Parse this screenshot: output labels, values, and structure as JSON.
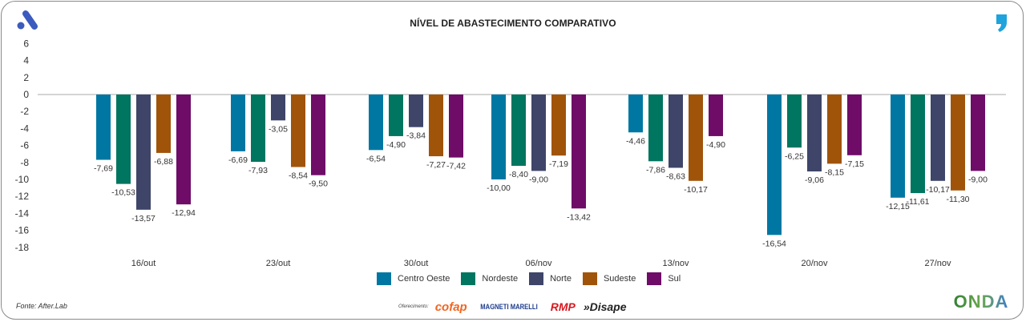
{
  "chart_data": {
    "type": "bar",
    "title": "NÍVEL DE ABASTECIMENTO COMPARATIVO",
    "xlabel": "",
    "ylabel": "",
    "ylim": [
      -18,
      6
    ],
    "yticks": [
      6,
      4,
      2,
      0,
      -2,
      -4,
      -6,
      -8,
      -10,
      -12,
      -14,
      -16,
      -18
    ],
    "ytick_labels": [
      "6",
      "4",
      "2",
      "0",
      "-2",
      "-4",
      "-6",
      "-8",
      "-10",
      "-12",
      "-14",
      "-16",
      "-18"
    ],
    "grid": false,
    "legend_position": "bottom",
    "categories": [
      "16/out",
      "23/out",
      "30/out",
      "06/nov",
      "13/nov",
      "20/nov",
      "27/nov"
    ],
    "series": [
      {
        "name": "Centro Oeste",
        "color": "#0077a2",
        "values": [
          -7.69,
          -6.69,
          -6.54,
          -10.0,
          -4.46,
          -16.54,
          -12.15
        ],
        "labels": [
          "-7,69",
          "-6,69",
          "-6,54",
          "-10,00",
          "-4,46",
          "-16,54",
          "-12,15"
        ]
      },
      {
        "name": "Nordeste",
        "color": "#007560",
        "values": [
          -10.53,
          -7.93,
          -4.9,
          -8.4,
          -7.86,
          -6.25,
          -11.61
        ],
        "labels": [
          "-10,53",
          "-7,93",
          "-4,90",
          "-8,40",
          "-7,86",
          "-6,25",
          "-11,61"
        ]
      },
      {
        "name": "Norte",
        "color": "#3e4569",
        "values": [
          -13.57,
          -3.05,
          -3.84,
          -9.0,
          -8.63,
          -9.06,
          -10.17
        ],
        "labels": [
          "-13,57",
          "-3,05",
          "-3,84",
          "-9,00",
          "-8,63",
          "-9,06",
          "-10,17"
        ]
      },
      {
        "name": "Sudeste",
        "color": "#a0540a",
        "values": [
          -6.88,
          -8.54,
          -7.27,
          -7.19,
          -10.17,
          -8.15,
          -11.3
        ],
        "labels": [
          "-6,88",
          "-8,54",
          "-7,27",
          "-7,19",
          "-10,17",
          "-8,15",
          "-11,30"
        ]
      },
      {
        "name": "Sul",
        "color": "#6e0c68",
        "values": [
          -12.94,
          -9.5,
          -7.42,
          -13.42,
          -4.9,
          -7.15,
          -9.0
        ],
        "labels": [
          "-12,94",
          "-9,50",
          "-7,42",
          "-13,42",
          "-4,90",
          "-7,15",
          "-9,00"
        ]
      }
    ]
  },
  "footer": {
    "source": "Fonte: After.Lab",
    "sponsor_label": "Oferecimento:",
    "sponsors": [
      "cofap",
      "MAGNETI MARELLI",
      "RMP",
      "»Disape"
    ],
    "brand": "ONDA"
  },
  "icons": {
    "top_left": "brand-a-logo-icon",
    "top_right": "quote-mark-icon"
  },
  "colors": {
    "brand_blue": "#3b5bbf",
    "quote_blue": "#1fa3dc"
  }
}
